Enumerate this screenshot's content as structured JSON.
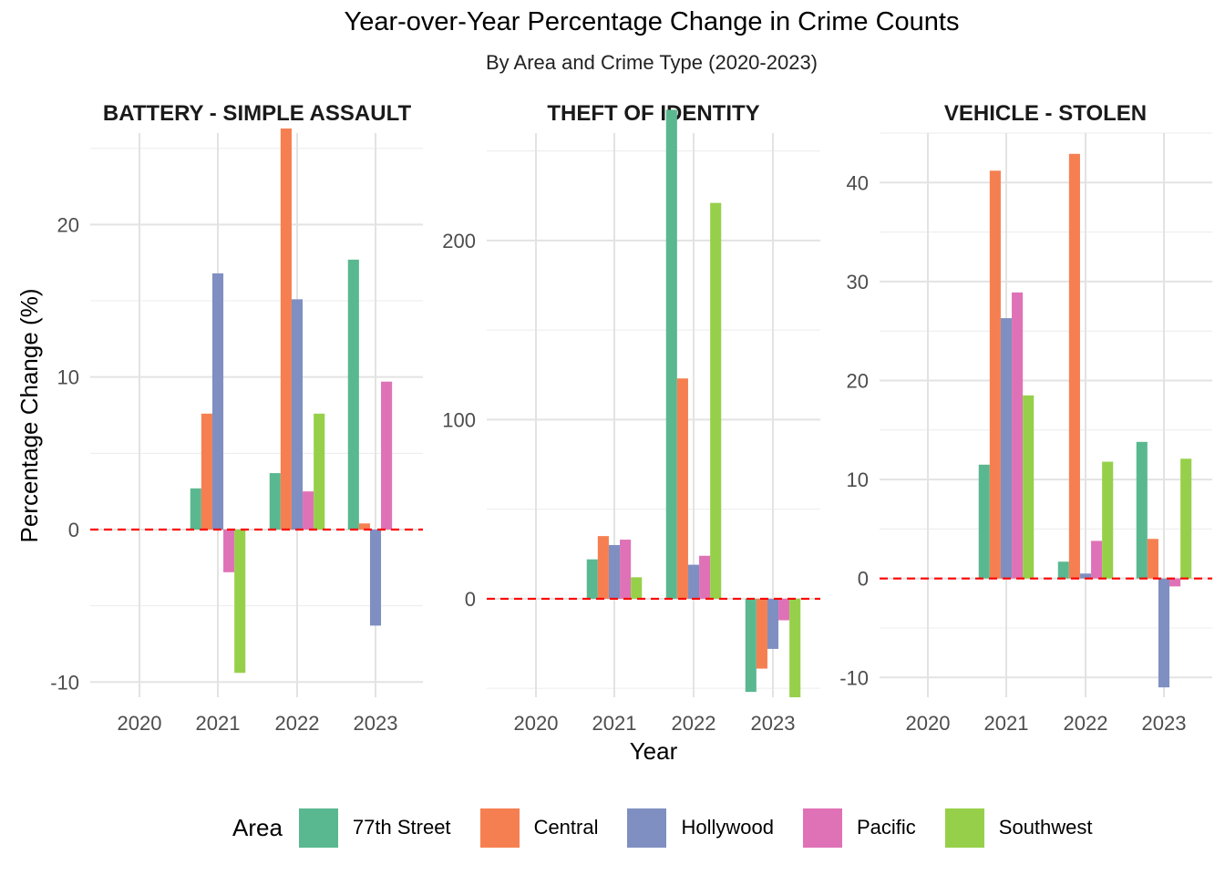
{
  "chart_data": {
    "type": "bar",
    "title": "Year-over-Year Percentage Change in Crime Counts",
    "subtitle": "By Area and Crime Type (2020-2023)",
    "xlabel": "Year",
    "ylabel": "Percentage Change (%)",
    "categories": [
      "2020",
      "2021",
      "2022",
      "2023"
    ],
    "legend": {
      "title": "Area",
      "placement": "bottom",
      "items": [
        {
          "name": "77th Street",
          "color": "#5ab890"
        },
        {
          "name": "Central",
          "color": "#f67f51"
        },
        {
          "name": "Hollywood",
          "color": "#7f8fc1"
        },
        {
          "name": "Pacific",
          "color": "#df72b6"
        },
        {
          "name": "Southwest",
          "color": "#96d04a"
        }
      ]
    },
    "reference_line": {
      "y": 0,
      "color": "#ff0000",
      "style": "dashed"
    },
    "grid": true,
    "panels": [
      {
        "facet": "BATTERY - SIMPLE ASSAULT",
        "ylim": [
          -11,
          26
        ],
        "yticks": [
          -10,
          0,
          10,
          20
        ],
        "ytick_labels": [
          "-10",
          "0",
          "10",
          "20"
        ],
        "series": [
          {
            "name": "77th Street",
            "values": [
              null,
              2.7,
              3.7,
              17.7
            ]
          },
          {
            "name": "Central",
            "values": [
              null,
              7.6,
              26.3,
              0.4
            ]
          },
          {
            "name": "Hollywood",
            "values": [
              null,
              16.8,
              15.1,
              -6.3
            ]
          },
          {
            "name": "Pacific",
            "values": [
              null,
              -2.8,
              2.5,
              9.7
            ]
          },
          {
            "name": "Southwest",
            "values": [
              null,
              -9.4,
              7.6,
              null
            ]
          }
        ]
      },
      {
        "facet": "THEFT OF IDENTITY",
        "ylim": [
          -55,
          260
        ],
        "yticks": [
          0,
          100,
          200
        ],
        "ytick_labels": [
          "0",
          "100",
          "200"
        ],
        "series": [
          {
            "name": "77th Street",
            "values": [
              null,
              22,
              273,
              -52
            ]
          },
          {
            "name": "Central",
            "values": [
              null,
              35,
              123,
              -39
            ]
          },
          {
            "name": "Hollywood",
            "values": [
              null,
              30,
              19,
              -28
            ]
          },
          {
            "name": "Pacific",
            "values": [
              null,
              33,
              24,
              -12
            ]
          },
          {
            "name": "Southwest",
            "values": [
              null,
              12,
              221,
              -55
            ]
          }
        ]
      },
      {
        "facet": "VEHICLE - STOLEN",
        "ylim": [
          -12,
          45
        ],
        "yticks": [
          -10,
          0,
          10,
          20,
          30,
          40
        ],
        "ytick_labels": [
          "-10",
          "0",
          "10",
          "20",
          "30",
          "40"
        ],
        "series": [
          {
            "name": "77th Street",
            "values": [
              null,
              11.5,
              1.7,
              13.8
            ]
          },
          {
            "name": "Central",
            "values": [
              null,
              41.2,
              42.9,
              4.0
            ]
          },
          {
            "name": "Hollywood",
            "values": [
              null,
              26.3,
              0.5,
              -11.0
            ]
          },
          {
            "name": "Pacific",
            "values": [
              null,
              28.9,
              3.8,
              -0.8
            ]
          },
          {
            "name": "Southwest",
            "values": [
              null,
              18.5,
              11.8,
              12.1
            ]
          }
        ]
      }
    ]
  }
}
